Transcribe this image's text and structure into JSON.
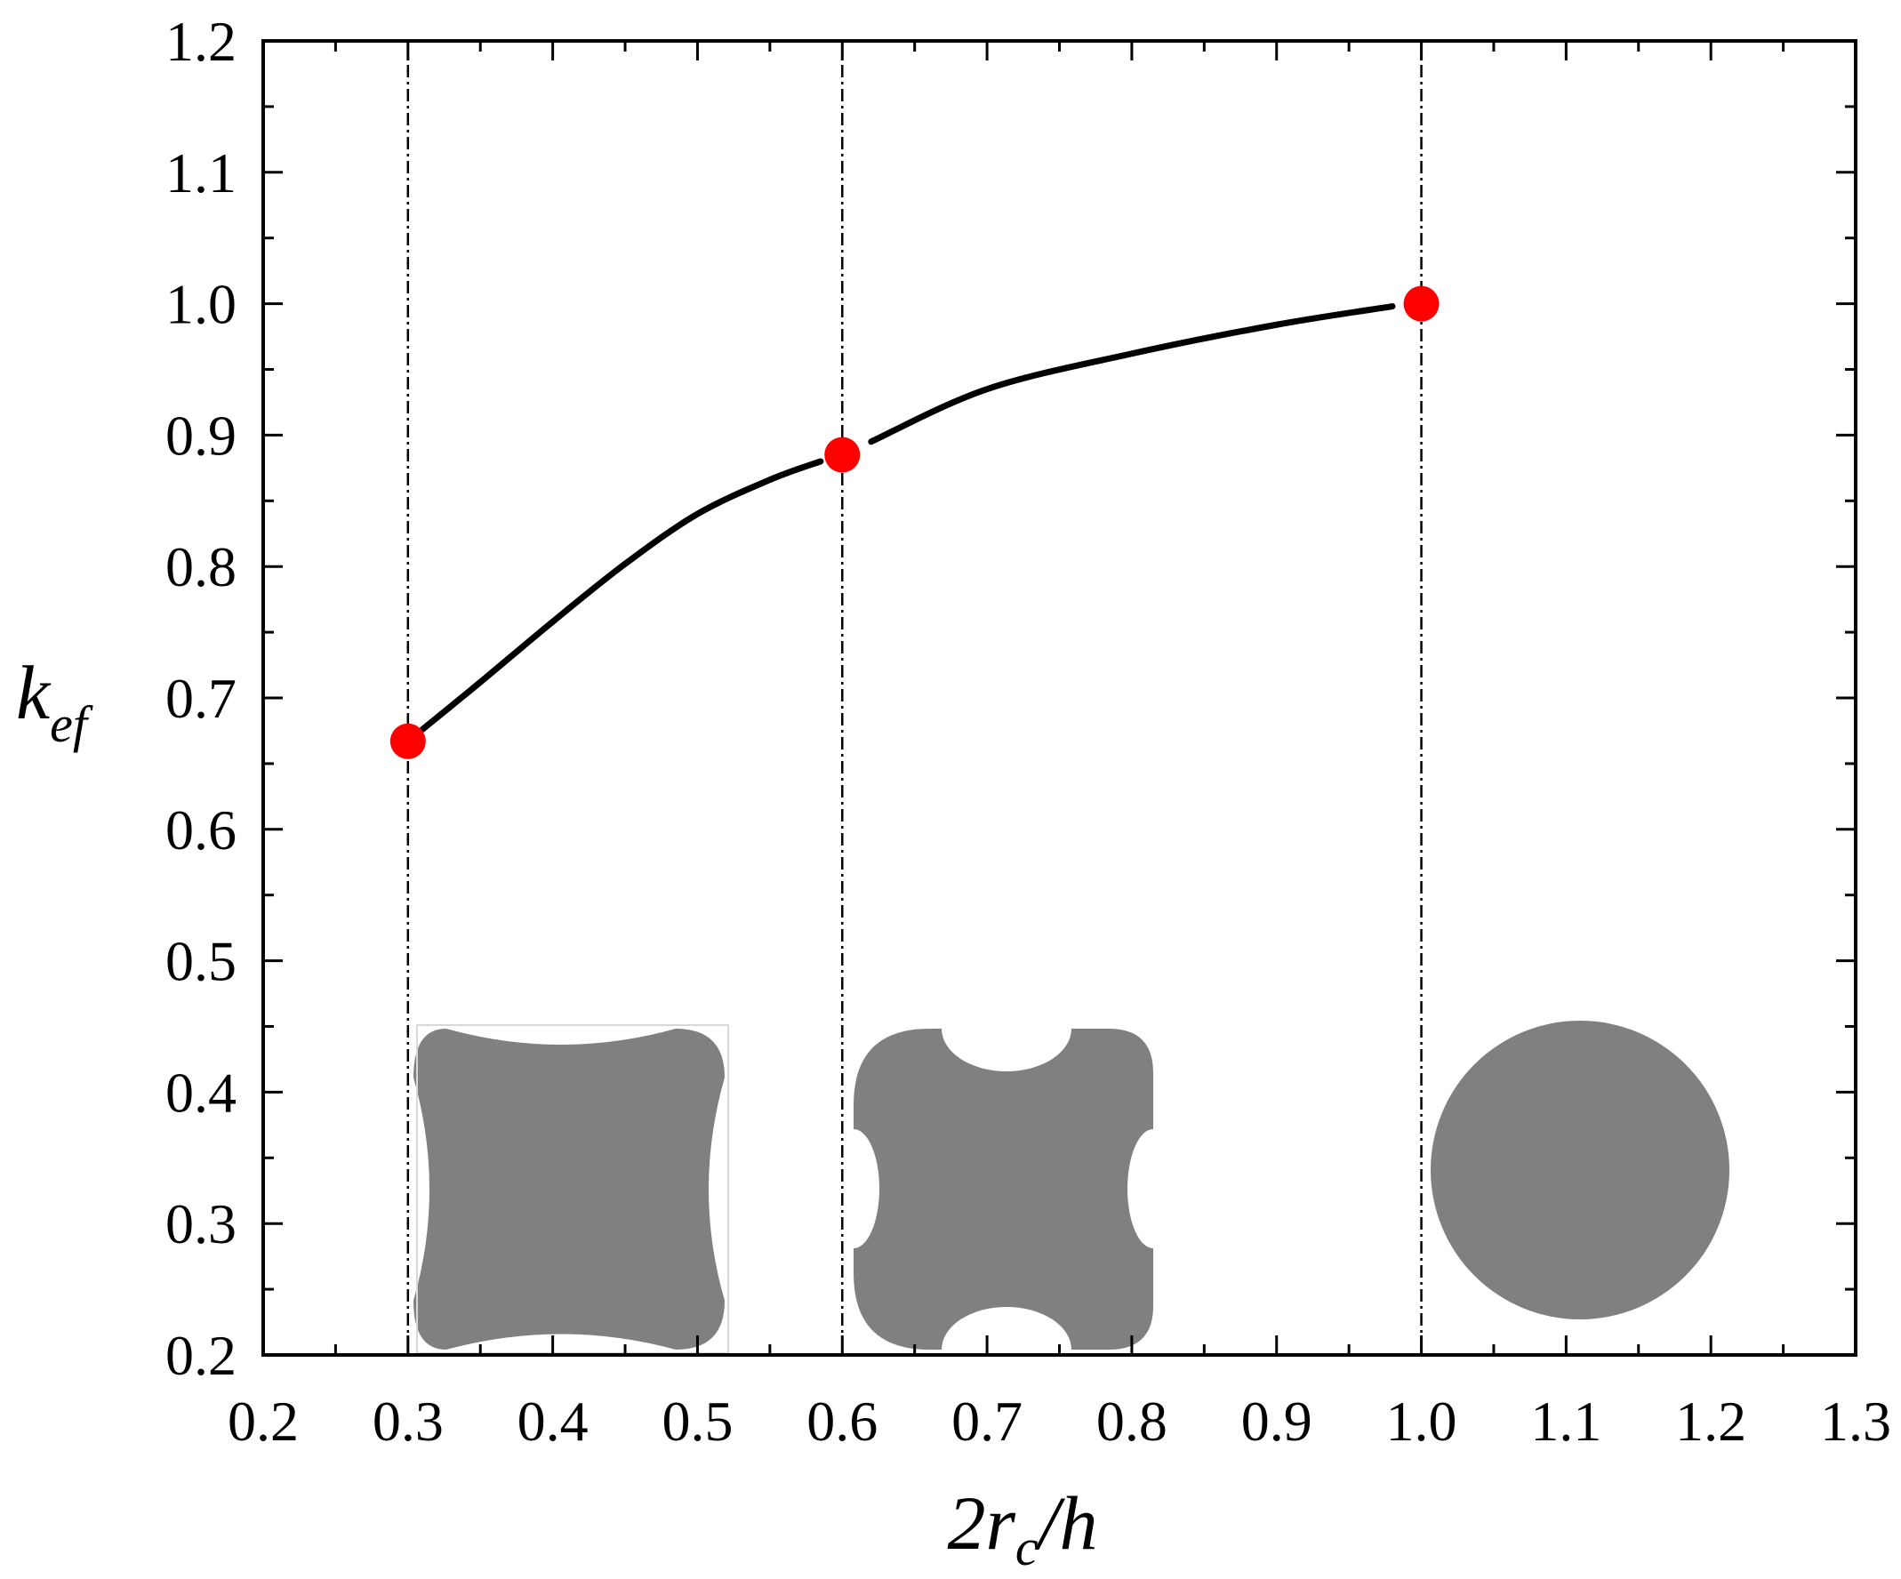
{
  "chart_data": {
    "type": "line",
    "xlabel": "2r_c/h",
    "ylabel": "k_ef",
    "xlim": [
      0.2,
      1.3
    ],
    "ylim": [
      0.2,
      1.2
    ],
    "xticks": [
      "0.2",
      "0.3",
      "0.4",
      "0.5",
      "0.6",
      "0.7",
      "0.8",
      "0.9",
      "1.0",
      "1.1",
      "1.2",
      "1.3"
    ],
    "yticks": [
      "0.2",
      "0.3",
      "0.4",
      "0.5",
      "0.6",
      "0.7",
      "0.8",
      "0.9",
      "1.0",
      "1.1",
      "1.2"
    ],
    "grid": false,
    "legend": "none",
    "series": [
      {
        "kind": "curve",
        "color": "#000000",
        "x": [
          0.31,
          0.35,
          0.4,
          0.45,
          0.5,
          0.55,
          0.585
        ],
        "y": [
          0.676,
          0.712,
          0.758,
          0.802,
          0.84,
          0.866,
          0.88
        ]
      },
      {
        "kind": "curve",
        "color": "#000000",
        "x": [
          0.62,
          0.7,
          0.8,
          0.9,
          0.98
        ],
        "y": [
          0.895,
          0.935,
          0.962,
          0.984,
          0.998
        ]
      },
      {
        "kind": "points",
        "color": "#ff0000",
        "x": [
          0.3,
          0.6,
          1.0
        ],
        "y": [
          0.667,
          0.885,
          1.0
        ]
      }
    ],
    "reference_lines": {
      "x": [
        0.3,
        0.6,
        1.0
      ],
      "style": "dash-dot"
    },
    "insets": [
      {
        "shape": "concave-square",
        "fill": "#808080"
      },
      {
        "shape": "rounded-square-notched",
        "fill": "#808080"
      },
      {
        "shape": "circle",
        "fill": "#808080"
      }
    ]
  },
  "axis_titles": {
    "x": {
      "main": "2r",
      "sub": "c",
      "tail": "/h"
    },
    "y": {
      "main": "k",
      "sub": "ef"
    }
  }
}
